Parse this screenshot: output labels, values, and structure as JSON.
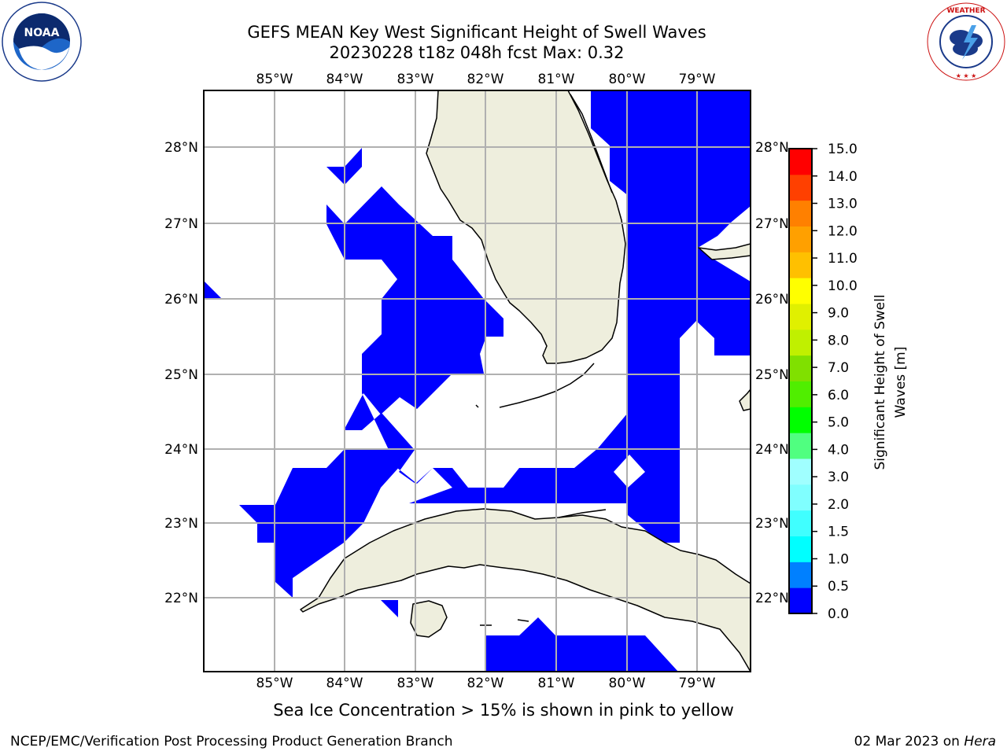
{
  "title": {
    "line1": "GEFS MEAN Key West Significant Height of Swell Waves",
    "line2": "20230228 t18z 048h fcst   Max: 0.32"
  },
  "logos": {
    "left": {
      "text": "NOAA",
      "ring_text": "NATIONAL OCEANIC AND ATMOSPHERIC ADMINISTRATION · U.S. DEPARTMENT OF COMMERCE"
    },
    "right": {
      "ring_text": "NATIONAL WEATHER SERVICE"
    }
  },
  "map": {
    "lon_labels": [
      "85°W",
      "84°W",
      "83°W",
      "82°W",
      "81°W",
      "80°W",
      "79°W"
    ],
    "lat_labels": [
      "28°N",
      "27°N",
      "26°N",
      "25°N",
      "24°N",
      "23°N",
      "22°N"
    ],
    "land_color": "#eeeedd",
    "swell_fill_color": "#0000ff",
    "grid_color": "#b0b0b0"
  },
  "colorbar": {
    "label": "Significant Height of Swell Waves [m]",
    "ticks": [
      "15.0",
      "14.0",
      "13.0",
      "12.0",
      "11.0",
      "10.0",
      "9.0",
      "8.0",
      "7.0",
      "6.0",
      "5.0",
      "4.0",
      "3.0",
      "2.0",
      "1.5",
      "1.0",
      "0.5",
      "0.0"
    ],
    "colors": [
      "#0000ff",
      "#0080ff",
      "#00ffff",
      "#40ffff",
      "#80ffff",
      "#a0ffff",
      "#50ff80",
      "#00ff00",
      "#50ee00",
      "#80e000",
      "#c0f000",
      "#e0f000",
      "#ffff00",
      "#ffc000",
      "#ffa000",
      "#ff8000",
      "#ff4000",
      "#ff0000"
    ]
  },
  "ice_note": "Sea Ice Concentration > 15% is shown in pink to yellow",
  "footer": {
    "left": "NCEP/EMC/Verification Post Processing Product Generation Branch",
    "date": "02 Mar 2023 on ",
    "machine": "Hera"
  }
}
